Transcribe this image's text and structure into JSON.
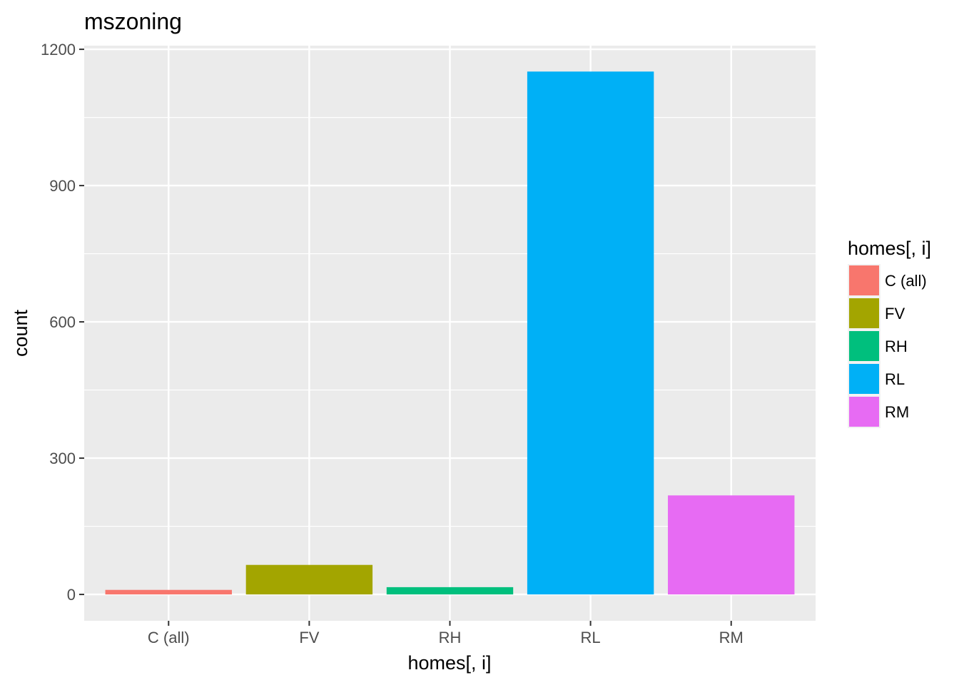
{
  "chart_data": {
    "type": "bar",
    "title": "mszoning",
    "xlabel": "homes[, i]",
    "ylabel": "count",
    "categories": [
      "C (all)",
      "FV",
      "RH",
      "RL",
      "RM"
    ],
    "values": [
      10,
      65,
      16,
      1151,
      218
    ],
    "colors": [
      "#F8766D",
      "#A3A500",
      "#00BF7D",
      "#00B0F6",
      "#E76BF3"
    ],
    "ylim": [
      -58,
      1208
    ],
    "yticks": [
      0,
      300,
      600,
      900,
      1200
    ],
    "y_tick_labels": [
      "0",
      "300",
      "600",
      "900",
      "1200"
    ],
    "grid": true,
    "panel_background": "#EBEBEB",
    "legend": {
      "title": "homes[, i]",
      "position": "right",
      "entries": [
        "C (all)",
        "FV",
        "RH",
        "RL",
        "RM"
      ]
    }
  }
}
